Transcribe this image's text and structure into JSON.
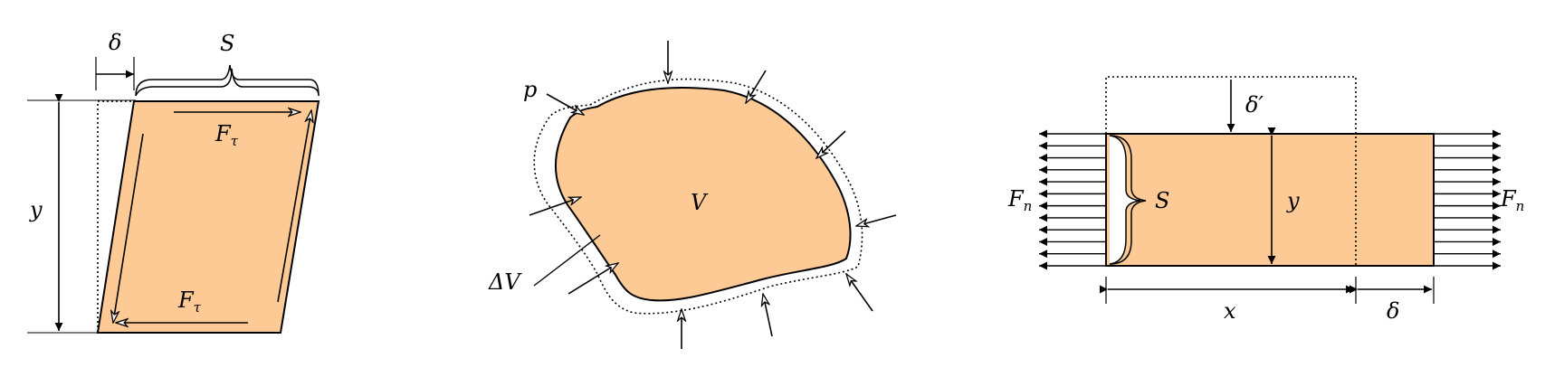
{
  "colors": {
    "fill": "#fdca96",
    "stroke": "#000000",
    "background": "#ffffff"
  },
  "panels": [
    {
      "id": "shear",
      "labels": {
        "delta": "δ",
        "area": "S",
        "height": "y",
        "force_top_base": "F",
        "force_top_sub": "τ",
        "force_bottom_base": "F",
        "force_bottom_sub": "τ"
      }
    },
    {
      "id": "bulk",
      "labels": {
        "pressure": "p",
        "volume": "V",
        "volume_change": "ΔV"
      }
    },
    {
      "id": "tension",
      "labels": {
        "delta_prime": "δ′",
        "force_left_base": "F",
        "force_left_sub": "n",
        "force_right_base": "F",
        "force_right_sub": "n",
        "area": "S",
        "height": "y",
        "length": "x",
        "delta": "δ"
      }
    }
  ]
}
